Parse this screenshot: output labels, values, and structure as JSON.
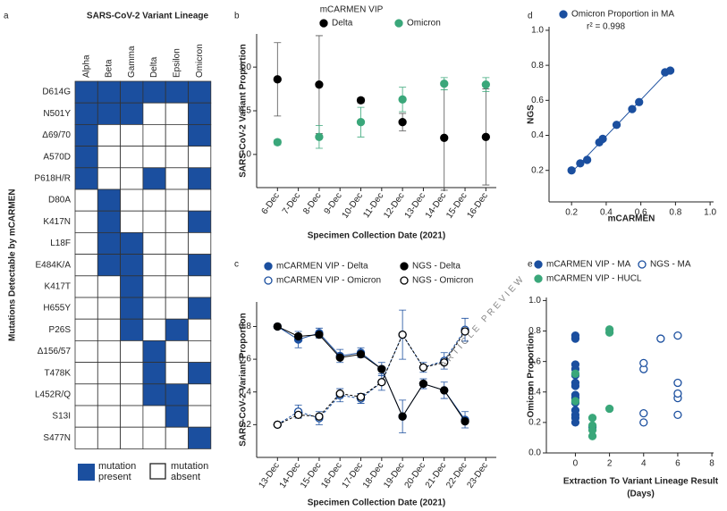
{
  "watermark": "ARTICLE PREVIEW",
  "chart_data": [
    {
      "type": "heatmap",
      "panel_label": "a",
      "title": "SARS-CoV-2 Variant Lineage",
      "columns": [
        "Alpha",
        "Beta",
        "Gamma",
        "Delta",
        "Epsilon",
        "Omicron"
      ],
      "rows": [
        "D614G",
        "N501Y",
        "Δ69/70",
        "A570D",
        "P618H/R",
        "D80A",
        "K417N",
        "L18F",
        "E484K/A",
        "K417T",
        "H655Y",
        "P26S",
        "Δ156/57",
        "T478K",
        "L452R/Q",
        "S13I",
        "S477N"
      ],
      "matrix": [
        [
          1,
          1,
          1,
          1,
          1,
          1
        ],
        [
          1,
          1,
          1,
          0,
          0,
          1
        ],
        [
          1,
          0,
          0,
          0,
          0,
          1
        ],
        [
          1,
          0,
          0,
          0,
          0,
          0
        ],
        [
          1,
          0,
          0,
          1,
          0,
          1
        ],
        [
          0,
          1,
          0,
          0,
          0,
          0
        ],
        [
          0,
          1,
          0,
          0,
          0,
          1
        ],
        [
          0,
          1,
          1,
          0,
          0,
          0
        ],
        [
          0,
          1,
          1,
          0,
          0,
          1
        ],
        [
          0,
          0,
          1,
          0,
          0,
          0
        ],
        [
          0,
          0,
          1,
          0,
          0,
          1
        ],
        [
          0,
          0,
          1,
          0,
          1,
          0
        ],
        [
          0,
          0,
          0,
          1,
          0,
          0
        ],
        [
          0,
          0,
          0,
          1,
          0,
          1
        ],
        [
          0,
          0,
          0,
          1,
          1,
          0
        ],
        [
          0,
          0,
          0,
          0,
          1,
          0
        ],
        [
          0,
          0,
          0,
          0,
          0,
          1
        ]
      ],
      "ylabel": "Mutations Detectable by mCARMEN",
      "legend": [
        "mutation present",
        "mutation absent"
      ],
      "color": "#1b4f9f"
    },
    {
      "type": "line",
      "panel_label": "b",
      "title": "mCARMEN VIP",
      "categories": [
        "6-Dec",
        "7-Dec",
        "8-Dec",
        "9-Dec",
        "10-Dec",
        "11-Dec",
        "12-Dec",
        "13-Dec",
        "14-Dec",
        "15-Dec",
        "16-Dec"
      ],
      "series": [
        {
          "name": "Delta",
          "color": "#000000",
          "marker": "filled",
          "values": [
            0.86,
            null,
            0.8,
            null,
            0.62,
            null,
            0.37,
            null,
            0.19,
            null,
            0.2
          ],
          "errors": [
            0.42,
            null,
            0.56,
            null,
            0.03,
            null,
            0.1,
            null,
            0.6,
            null,
            0.55
          ]
        },
        {
          "name": "Omicron",
          "color": "#3aa77a",
          "marker": "filled",
          "values": [
            0.14,
            null,
            0.2,
            null,
            0.37,
            null,
            0.63,
            null,
            0.81,
            null,
            0.8
          ],
          "errors": [
            0.03,
            null,
            0.13,
            null,
            0.17,
            null,
            0.14,
            null,
            0.07,
            null,
            0.08
          ]
        }
      ],
      "xlabel": "Specimen Collection Date (2021)",
      "ylabel": "SARS-CoV-2 Variant Proportion",
      "ylim": [
        -0.38,
        1.38
      ],
      "yticks": [
        {
          "value": 0,
          "label": "0.0"
        },
        0.5,
        {
          "value": 1,
          "label": "1.0"
        }
      ]
    },
    {
      "type": "line",
      "panel_label": "c",
      "categories": [
        "13-Dec",
        "14-Dec",
        "15-Dec",
        "16-Dec",
        "17-Dec",
        "18-Dec",
        "19-Dec",
        "20-Dec",
        "21-Dec",
        "22-Dec",
        "23-Dec"
      ],
      "series": [
        {
          "name": "mCARMEN VIP - Delta",
          "color": "#1b4f9f",
          "marker": "filled",
          "linestyle": "solid",
          "values": [
            0.8,
            0.72,
            0.76,
            0.62,
            0.64,
            0.54,
            0.25,
            0.45,
            0.41,
            0.23,
            null
          ],
          "errors": [
            0.01,
            0.05,
            0.03,
            0.04,
            0.03,
            0.04,
            0.1,
            0.03,
            0.05,
            0.05,
            null
          ]
        },
        {
          "name": "NGS - Delta",
          "color": "#000000",
          "marker": "filled",
          "linestyle": "solid",
          "values": [
            0.8,
            0.74,
            0.75,
            0.61,
            0.63,
            0.54,
            0.25,
            0.45,
            0.41,
            0.22,
            null
          ]
        },
        {
          "name": "mCARMEN VIP - Omicron",
          "color": "#1b4f9f",
          "marker": "open",
          "linestyle": "dashed",
          "values": [
            0.2,
            0.28,
            0.24,
            0.38,
            0.36,
            0.46,
            0.75,
            0.55,
            0.59,
            0.78,
            null
          ],
          "errors": [
            0.01,
            0.04,
            0.04,
            0.04,
            0.03,
            0.05,
            0.15,
            0.03,
            0.05,
            0.07,
            null
          ]
        },
        {
          "name": "NGS - Omicron",
          "color": "#000000",
          "marker": "open",
          "linestyle": "dashed",
          "values": [
            0.2,
            0.26,
            0.25,
            0.39,
            0.37,
            0.46,
            0.75,
            0.55,
            0.58,
            0.77,
            null
          ]
        }
      ],
      "xlabel": "Specimen Collection Date (2021)",
      "ylabel": "SARS-CoV-2 Variant Proportion",
      "ylim": [
        0,
        0.95
      ],
      "yticks": [
        0.2,
        0.4,
        0.6,
        0.8
      ]
    },
    {
      "type": "scatter",
      "panel_label": "d",
      "annotation": "r² = 0.998",
      "fit_line": true,
      "series": [
        {
          "name": "Omicron Proportion in MA",
          "color": "#1b4f9f",
          "marker": "filled",
          "x": [
            0.2,
            0.25,
            0.29,
            0.36,
            0.38,
            0.46,
            0.55,
            0.59,
            0.74,
            0.77
          ],
          "y": [
            0.2,
            0.24,
            0.26,
            0.36,
            0.38,
            0.46,
            0.55,
            0.59,
            0.76,
            0.77
          ]
        }
      ],
      "xlabel": "mCARMEN",
      "ylabel": "NGS",
      "xlim": [
        0.07,
        1.02
      ],
      "xticks": [
        0.2,
        0.4,
        0.6,
        0.8,
        {
          "value": 1,
          "label": "1.0"
        }
      ],
      "ylim": [
        0.02,
        1.02
      ],
      "yticks": [
        0.2,
        0.4,
        0.6,
        0.8,
        {
          "value": 1,
          "label": "1.0"
        }
      ]
    },
    {
      "type": "scatter",
      "panel_label": "e",
      "series": [
        {
          "name": "mCARMEN VIP - MA",
          "color": "#1b4f9f",
          "marker": "filled",
          "x": [
            0,
            0,
            0,
            0,
            0,
            0,
            0,
            0,
            0,
            0,
            0,
            0,
            0,
            0,
            1
          ],
          "y": [
            0.2,
            0.23,
            0.25,
            0.28,
            0.33,
            0.36,
            0.38,
            0.44,
            0.46,
            0.51,
            0.55,
            0.58,
            0.75,
            0.77,
            0.17
          ]
        },
        {
          "name": "NGS - MA",
          "color": "#1b4f9f",
          "marker": "open",
          "x": [
            4,
            4,
            4,
            4,
            5,
            6,
            6,
            6,
            6,
            6
          ],
          "y": [
            0.2,
            0.26,
            0.55,
            0.59,
            0.75,
            0.25,
            0.36,
            0.39,
            0.46,
            0.77
          ]
        },
        {
          "name": "mCARMEN VIP - HUCL",
          "color": "#3aa77a",
          "marker": "filled",
          "x": [
            0,
            0,
            1,
            1,
            1,
            1,
            2,
            2,
            2
          ],
          "y": [
            0.34,
            0.52,
            0.11,
            0.15,
            0.18,
            0.23,
            0.29,
            0.79,
            0.81
          ]
        }
      ],
      "xlabel": [
        "Extraction To Variant Lineage Result",
        "(Days)"
      ],
      "ylabel": "Omicron Proportion",
      "xlim": [
        -1.7,
        8.1
      ],
      "xticks": [
        0,
        2,
        4,
        6,
        8
      ],
      "ylim": [
        0,
        1.02
      ],
      "yticks": [
        {
          "value": 0,
          "label": "0.0"
        },
        0.2,
        0.4,
        0.6,
        0.8,
        {
          "value": 1,
          "label": "1.0"
        }
      ]
    }
  ]
}
